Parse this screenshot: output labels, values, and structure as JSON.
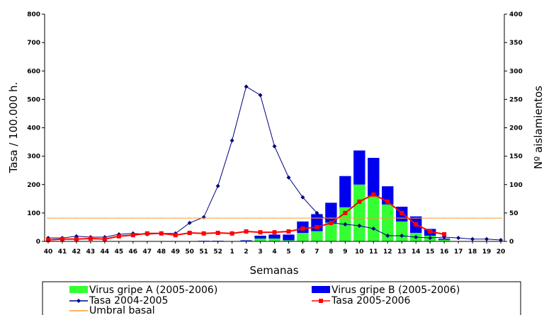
{
  "chart_data": {
    "type": "bar",
    "categories": [
      "40",
      "41",
      "42",
      "43",
      "44",
      "45",
      "46",
      "47",
      "48",
      "49",
      "50",
      "51",
      "52",
      "1",
      "2",
      "3",
      "4",
      "5",
      "6",
      "7",
      "8",
      "9",
      "10",
      "11",
      "12",
      "13",
      "14",
      "15",
      "16",
      "17",
      "18",
      "19",
      "20"
    ],
    "xlabel": "Semanas",
    "ylabel": "Tasa / 100.000 h.",
    "y2label": "Nº aislamientos",
    "ylim": [
      0,
      800
    ],
    "y2lim": [
      0,
      400
    ],
    "yticks": [
      "0",
      "100",
      "200",
      "300",
      "400",
      "500",
      "600",
      "700",
      "800"
    ],
    "y2ticks": [
      "0",
      "50",
      "100",
      "150",
      "200",
      "250",
      "300",
      "350",
      "400"
    ],
    "bar_series": [
      {
        "name": "Virus gripe A (2005-2006)",
        "color": "#33ff33",
        "axis": "right",
        "values": [
          0,
          0,
          0,
          0,
          0,
          0,
          0,
          0,
          0,
          0,
          0,
          0,
          0,
          0,
          1,
          5,
          5,
          2,
          15,
          18,
          33,
          60,
          100,
          80,
          65,
          35,
          15,
          10,
          3,
          0,
          0,
          0,
          0
        ]
      },
      {
        "name": "Virus gripe B (2005-2006)",
        "color": "#0000ee",
        "axis": "right",
        "values": [
          0,
          0,
          0,
          0,
          0,
          0,
          0,
          0,
          0,
          0,
          0,
          1,
          1,
          0,
          1,
          5,
          7,
          10,
          20,
          30,
          35,
          55,
          60,
          67,
          32,
          26,
          29,
          12,
          2,
          0,
          0,
          0,
          0
        ]
      }
    ],
    "line_series": [
      {
        "name": "Tasa 2004-2005",
        "color": "#000080",
        "marker": "diamond",
        "axis": "left",
        "values": [
          12,
          12,
          18,
          15,
          15,
          25,
          28,
          25,
          28,
          28,
          65,
          85,
          195,
          355,
          545,
          515,
          335,
          225,
          155,
          100,
          65,
          60,
          55,
          45,
          20,
          20,
          15,
          12,
          15,
          12,
          8,
          8,
          5
        ]
      },
      {
        "name": "Tasa 2005-2006",
        "color": "#ff0000",
        "marker": "square",
        "axis": "left",
        "values": [
          5,
          8,
          8,
          10,
          8,
          18,
          22,
          28,
          28,
          22,
          30,
          28,
          30,
          28,
          35,
          32,
          32,
          35,
          45,
          50,
          65,
          100,
          140,
          165,
          140,
          100,
          60,
          35,
          25,
          null,
          null,
          null,
          null
        ]
      },
      {
        "name": "Umbral basal",
        "color": "#ff9933",
        "marker": "none",
        "axis": "left",
        "values": [
          82,
          82,
          82,
          82,
          82,
          82,
          82,
          82,
          82,
          82,
          82,
          82,
          82,
          82,
          82,
          82,
          82,
          82,
          82,
          82,
          82,
          82,
          82,
          82,
          82,
          82,
          82,
          82,
          82,
          82,
          82,
          82,
          82
        ]
      }
    ],
    "legend": [
      {
        "label": "Virus gripe A (2005-2006)",
        "kind": "bar",
        "color": "#33ff33"
      },
      {
        "label": "Virus gripe B (2005-2006)",
        "kind": "bar",
        "color": "#0000ee"
      },
      {
        "label": "Tasa 2004-2005",
        "kind": "line-diamond",
        "color": "#000080"
      },
      {
        "label": "Tasa 2005-2006",
        "kind": "line-square",
        "color": "#ff0000"
      },
      {
        "label": "Umbral basal",
        "kind": "line",
        "color": "#ff9933"
      }
    ],
    "legend_position": "bottom"
  }
}
